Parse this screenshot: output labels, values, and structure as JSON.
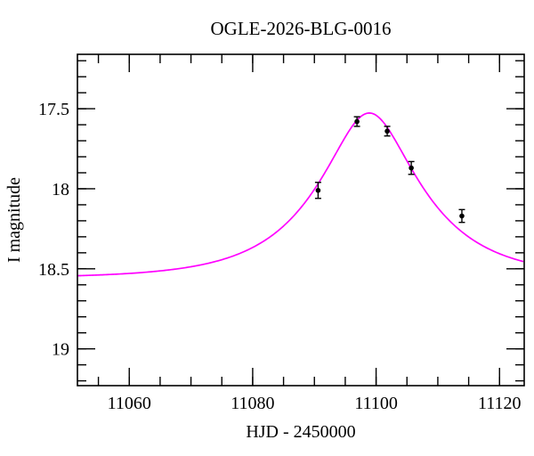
{
  "chart_data": {
    "type": "scatter",
    "title": "OGLE-2026-BLG-0016",
    "xlabel": "HJD - 2450000",
    "ylabel": "I magnitude",
    "x_range": [
      11051.6,
      11124.0
    ],
    "y_range_top_to_bottom": [
      17.16,
      19.23
    ],
    "y_axis_inverted": true,
    "grid": false,
    "legend": "none",
    "x_major_ticks": [
      11060,
      11080,
      11100,
      11120
    ],
    "x_major_tick_labels": [
      "11060",
      "11080",
      "11100",
      "11120"
    ],
    "x_minor_tick_step": 5,
    "y_major_ticks": [
      17.5,
      18.0,
      18.5,
      19.0
    ],
    "y_major_tick_labels": [
      "17.5",
      "18",
      "18.5",
      "19"
    ],
    "y_minor_tick_step": 0.1,
    "data_points": [
      {
        "hjd": 11090.6,
        "mag": 18.01,
        "err": 0.05
      },
      {
        "hjd": 11096.9,
        "mag": 17.58,
        "err": 0.03
      },
      {
        "hjd": 11101.8,
        "mag": 17.64,
        "err": 0.03
      },
      {
        "hjd": 11105.7,
        "mag": 17.87,
        "err": 0.04
      },
      {
        "hjd": 11113.9,
        "mag": 18.17,
        "err": 0.04
      }
    ],
    "model_curve": {
      "model": "paczynski-microlensing",
      "t0": 11098.9,
      "tE": 15.5,
      "u0": 0.41,
      "baseline_mag": 18.56,
      "peak_mag": 17.53
    },
    "colors": {
      "curve": "#ff00ff",
      "points": "#000000",
      "axes": "#000000",
      "background": "#ffffff"
    }
  }
}
